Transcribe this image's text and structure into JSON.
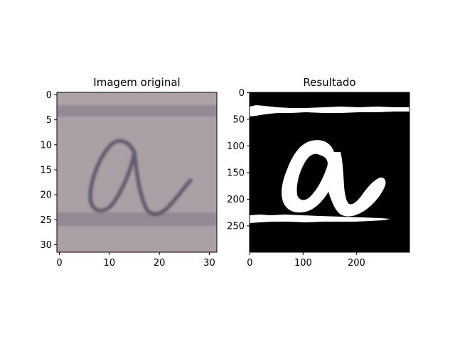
{
  "chart_data": [
    {
      "type": "image",
      "title": "Imagem original",
      "xlabel": "",
      "ylabel": "",
      "xlim": [
        -0.5,
        31.5
      ],
      "ylim": [
        31.5,
        -0.5
      ],
      "xticks": [
        0,
        10,
        20,
        30
      ],
      "yticks": [
        0,
        5,
        10,
        15,
        20,
        25,
        30
      ],
      "xtick_labels": [
        "0",
        "10",
        "20",
        "30"
      ],
      "ytick_labels": [
        "0",
        "5",
        "10",
        "15",
        "20",
        "25",
        "30"
      ],
      "image_content": "grayscale-purple photo of a handwritten cursive letter 'a' between two horizontal ruled lines",
      "background_color": "#aba0a6",
      "ink_color": "#5b5566",
      "ruled_line_rows": [
        3.2,
        25.8
      ]
    },
    {
      "type": "image",
      "title": "Resultado",
      "xlabel": "",
      "ylabel": "",
      "xlim": [
        -0.5,
        299.5
      ],
      "ylim": [
        299.5,
        -0.5
      ],
      "xticks": [
        0,
        100,
        200
      ],
      "yticks": [
        0,
        50,
        100,
        150,
        200,
        250
      ],
      "xtick_labels": [
        "0",
        "100",
        "200"
      ],
      "ytick_labels": [
        "0",
        "50",
        "100",
        "150",
        "200",
        "250"
      ],
      "image_content": "binary segmentation mask: white cursive letter 'a' and two white horizontal line strips on black background",
      "background_color": "#000000",
      "foreground_color": "#ffffff"
    }
  ]
}
